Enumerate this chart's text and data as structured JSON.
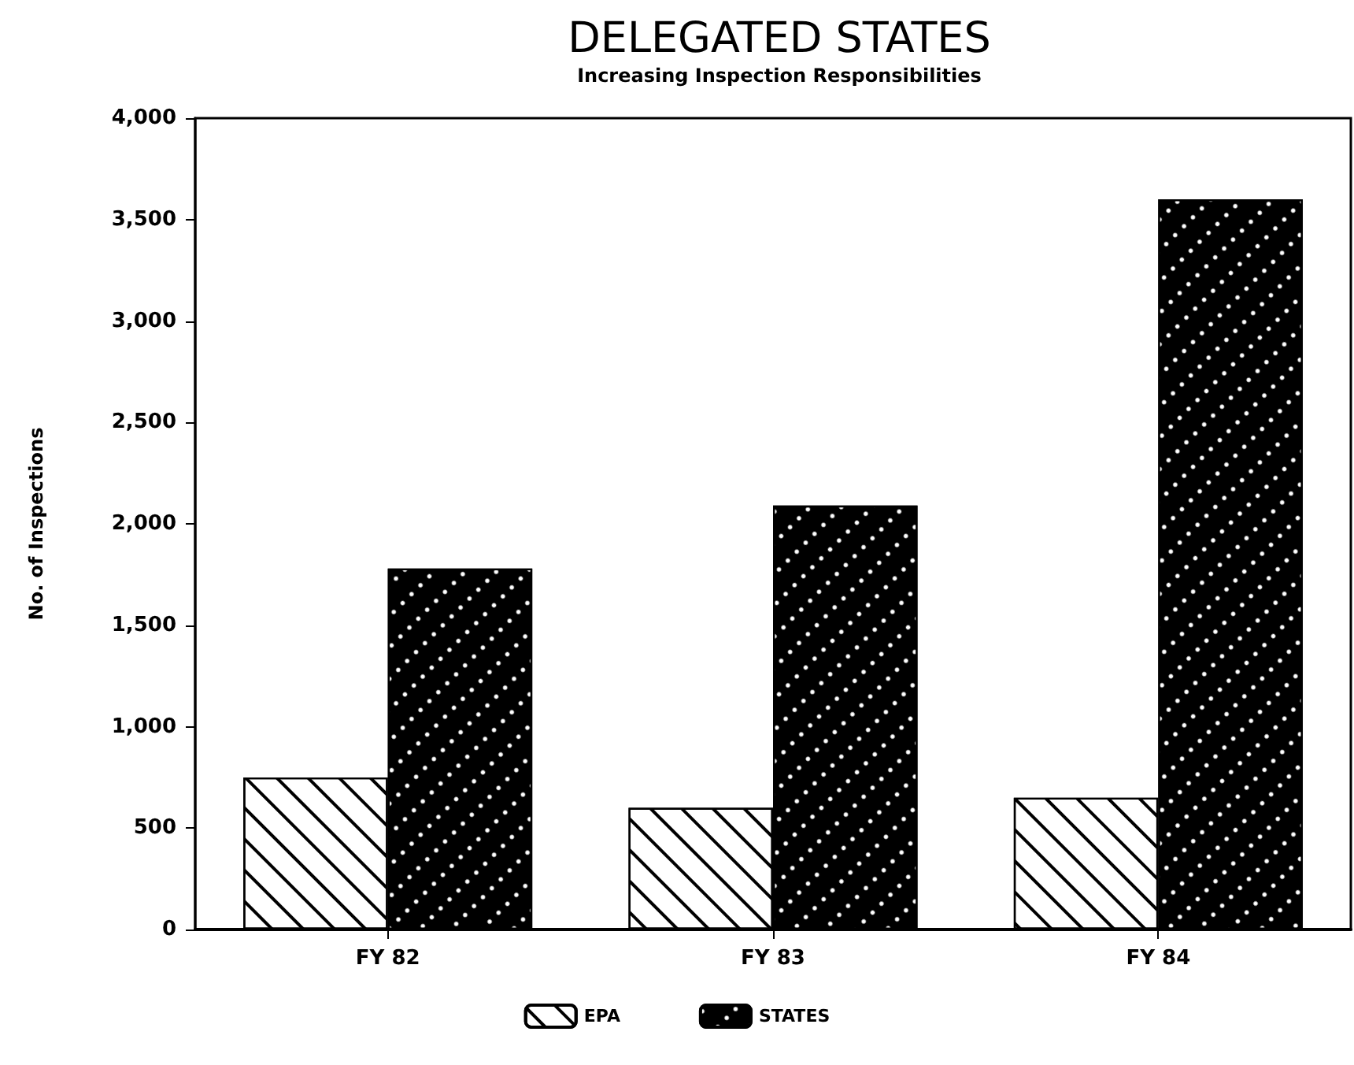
{
  "chart_data": {
    "type": "bar",
    "title": "DELEGATED STATES",
    "subtitle": "Increasing Inspection Responsibilities",
    "ylabel": "No. of Inspections",
    "categories": [
      "FY 82",
      "FY 83",
      "FY 84"
    ],
    "series": [
      {
        "name": "EPA",
        "color": "#ffffff",
        "values": [
          750,
          600,
          650
        ]
      },
      {
        "name": "STATES",
        "color": "#000000",
        "values": [
          1780,
          2090,
          3600
        ]
      }
    ],
    "ylim": [
      0,
      4000
    ],
    "yticks": [
      0,
      500,
      {
        "value": 1000,
        "label": "1,000"
      },
      {
        "value": 1500,
        "label": "1,500"
      },
      {
        "value": 2000,
        "label": "2,000"
      },
      {
        "value": 2500,
        "label": "2,500"
      },
      {
        "value": 3000,
        "label": "3,000"
      },
      {
        "value": 3500,
        "label": "3,500"
      },
      {
        "value": 4000,
        "label": "4,000"
      }
    ],
    "grid": false,
    "legend": "bottom"
  }
}
